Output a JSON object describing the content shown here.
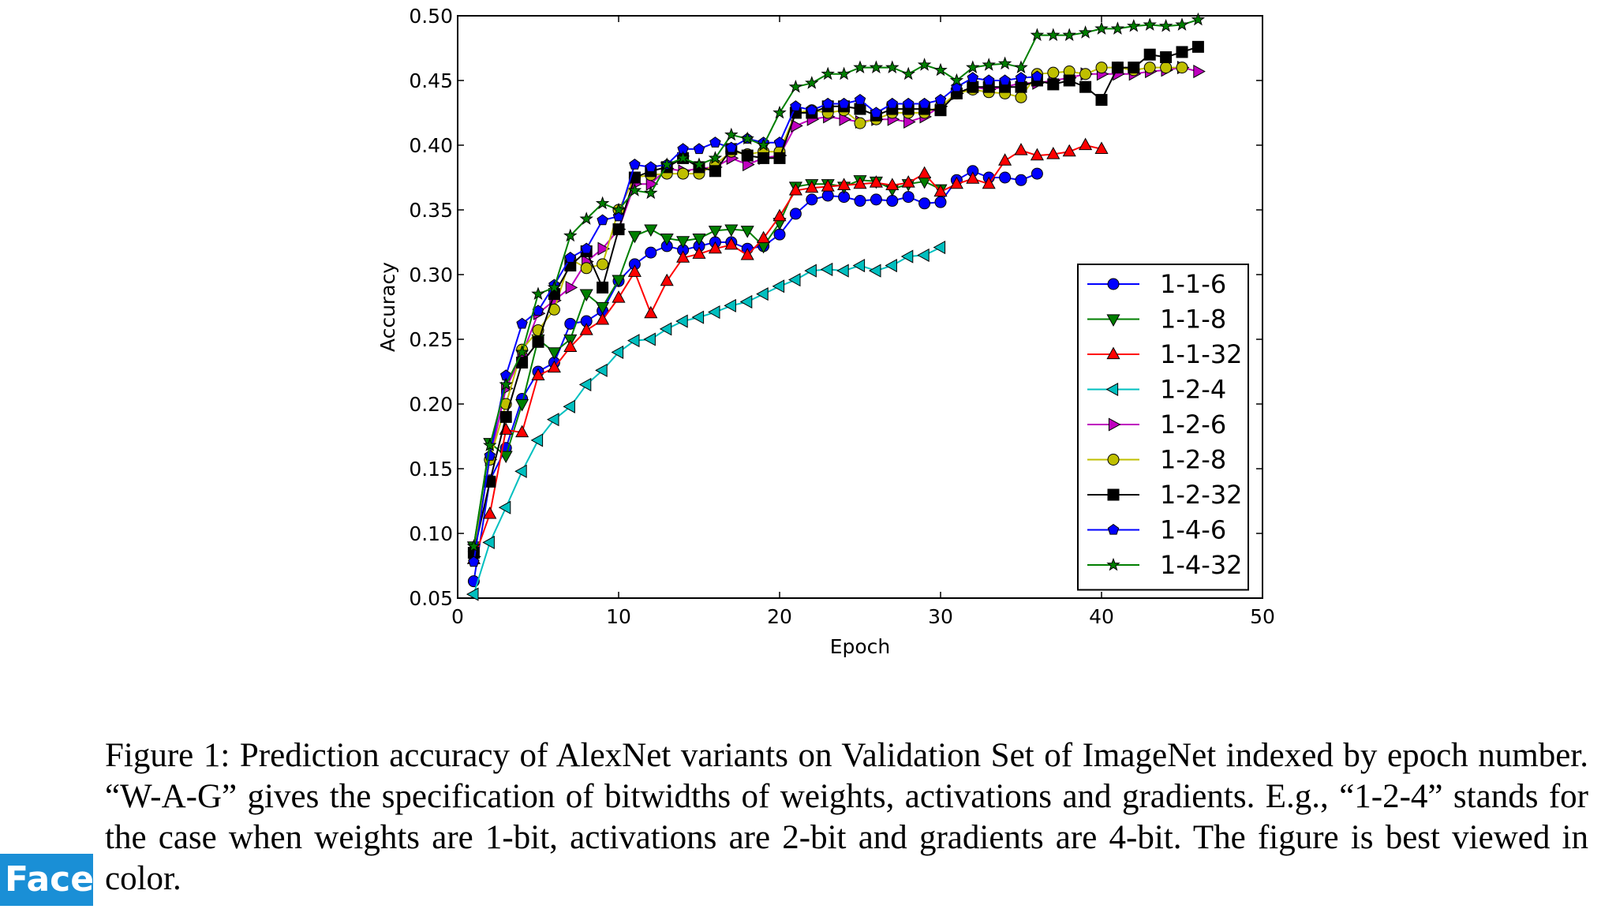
{
  "chart_data": {
    "type": "line",
    "title": "",
    "xlabel": "Epoch",
    "ylabel": "Accuracy",
    "xlim": [
      0,
      50
    ],
    "ylim": [
      0.05,
      0.5
    ],
    "xticks": [
      "0",
      "10",
      "20",
      "30",
      "40",
      "50"
    ],
    "yticks": [
      "0.05",
      "0.10",
      "0.15",
      "0.20",
      "0.25",
      "0.30",
      "0.35",
      "0.40",
      "0.45",
      "0.50"
    ],
    "grid": false,
    "legend_position": "lower-right",
    "series": [
      {
        "name": "1-1-6",
        "color": "#0000ff",
        "marker": "circle",
        "x": [
          1,
          2,
          3,
          4,
          5,
          6,
          7,
          8,
          9,
          10,
          11,
          12,
          13,
          14,
          15,
          16,
          17,
          18,
          19,
          20,
          21,
          22,
          23,
          24,
          25,
          26,
          27,
          28,
          29,
          30,
          31,
          32,
          33,
          34,
          35,
          36
        ],
        "y": [
          0.063,
          0.141,
          0.166,
          0.204,
          0.225,
          0.232,
          0.262,
          0.264,
          0.272,
          0.295,
          0.308,
          0.317,
          0.322,
          0.319,
          0.322,
          0.325,
          0.325,
          0.32,
          0.322,
          0.331,
          0.347,
          0.358,
          0.361,
          0.36,
          0.357,
          0.358,
          0.357,
          0.36,
          0.355,
          0.356,
          0.373,
          0.38,
          0.375,
          0.375,
          0.373,
          0.378
        ]
      },
      {
        "name": "1-1-8",
        "color": "#007f00",
        "marker": "triangle-down",
        "x": [
          1,
          2,
          3,
          4,
          5,
          6,
          7,
          8,
          9,
          10,
          11,
          12,
          13,
          14,
          15,
          16,
          17,
          18,
          19,
          20,
          21,
          22,
          23,
          24,
          25,
          26,
          27,
          28,
          29,
          30
        ],
        "y": [
          0.09,
          0.17,
          0.16,
          0.2,
          0.25,
          0.24,
          0.25,
          0.285,
          0.275,
          0.296,
          0.33,
          0.335,
          0.328,
          0.326,
          0.328,
          0.334,
          0.335,
          0.334,
          0.322,
          0.34,
          0.368,
          0.37,
          0.37,
          0.368,
          0.373,
          0.372,
          0.366,
          0.37,
          0.372,
          0.366
        ]
      },
      {
        "name": "1-1-32",
        "color": "#ff0000",
        "marker": "triangle-up",
        "x": [
          1,
          2,
          3,
          4,
          5,
          6,
          7,
          8,
          9,
          10,
          11,
          12,
          13,
          14,
          15,
          16,
          17,
          18,
          19,
          20,
          21,
          22,
          23,
          24,
          25,
          26,
          27,
          28,
          29,
          30,
          31,
          32,
          33,
          34,
          35,
          36,
          37,
          38,
          39,
          40
        ],
        "y": [
          0.08,
          0.115,
          0.18,
          0.178,
          0.222,
          0.228,
          0.244,
          0.257,
          0.265,
          0.282,
          0.302,
          0.27,
          0.295,
          0.313,
          0.316,
          0.32,
          0.323,
          0.315,
          0.328,
          0.345,
          0.365,
          0.367,
          0.368,
          0.369,
          0.37,
          0.371,
          0.369,
          0.371,
          0.378,
          0.364,
          0.37,
          0.374,
          0.37,
          0.388,
          0.396,
          0.392,
          0.393,
          0.395,
          0.4,
          0.397
        ]
      },
      {
        "name": "1-2-4",
        "color": "#00bfbf",
        "marker": "triangle-left",
        "x": [
          1,
          2,
          3,
          4,
          5,
          6,
          7,
          8,
          9,
          10,
          11,
          12,
          13,
          14,
          15,
          16,
          17,
          18,
          19,
          20,
          21,
          22,
          23,
          24,
          25,
          26,
          27,
          28,
          29,
          30
        ],
        "y": [
          0.053,
          0.093,
          0.12,
          0.148,
          0.172,
          0.188,
          0.198,
          0.215,
          0.226,
          0.24,
          0.249,
          0.25,
          0.258,
          0.264,
          0.267,
          0.271,
          0.276,
          0.279,
          0.285,
          0.291,
          0.296,
          0.303,
          0.304,
          0.303,
          0.307,
          0.303,
          0.307,
          0.314,
          0.315,
          0.321
        ]
      },
      {
        "name": "1-2-6",
        "color": "#bf00bf",
        "marker": "triangle-right",
        "x": [
          1,
          2,
          3,
          4,
          5,
          6,
          7,
          8,
          9,
          10,
          11,
          12,
          13,
          14,
          15,
          16,
          17,
          18,
          19,
          20,
          21,
          22,
          23,
          24,
          25,
          26,
          27,
          28,
          29,
          30,
          31,
          32,
          33,
          34,
          35,
          36,
          37,
          38,
          39,
          40,
          41,
          42,
          43,
          44,
          45,
          46
        ],
        "y": [
          0.082,
          0.157,
          0.212,
          0.238,
          0.27,
          0.28,
          0.29,
          0.31,
          0.32,
          0.335,
          0.37,
          0.37,
          0.382,
          0.38,
          0.382,
          0.383,
          0.39,
          0.385,
          0.39,
          0.392,
          0.415,
          0.42,
          0.422,
          0.42,
          0.418,
          0.42,
          0.42,
          0.418,
          0.422,
          0.43,
          0.44,
          0.445,
          0.443,
          0.445,
          0.448,
          0.448,
          0.45,
          0.452,
          0.455,
          0.455,
          0.455,
          0.455,
          0.457,
          0.458,
          0.46,
          0.457
        ]
      },
      {
        "name": "1-2-8",
        "color": "#bfbf00",
        "marker": "circle",
        "x": [
          1,
          2,
          3,
          4,
          5,
          6,
          7,
          8,
          9,
          10,
          11,
          12,
          13,
          14,
          15,
          16,
          17,
          18,
          19,
          20,
          21,
          22,
          23,
          24,
          25,
          26,
          27,
          28,
          29,
          30,
          31,
          32,
          33,
          34,
          35,
          36,
          37,
          38,
          39,
          40,
          41,
          42,
          43,
          44,
          45
        ],
        "y": [
          0.086,
          0.157,
          0.2,
          0.242,
          0.257,
          0.273,
          0.312,
          0.305,
          0.308,
          0.35,
          0.375,
          0.377,
          0.378,
          0.378,
          0.378,
          0.385,
          0.395,
          0.393,
          0.395,
          0.395,
          0.425,
          0.427,
          0.425,
          0.427,
          0.417,
          0.42,
          0.425,
          0.425,
          0.425,
          0.43,
          0.44,
          0.443,
          0.441,
          0.44,
          0.437,
          0.455,
          0.456,
          0.457,
          0.455,
          0.46,
          0.46,
          0.458,
          0.46,
          0.46,
          0.46
        ]
      },
      {
        "name": "1-2-32",
        "color": "#000000",
        "marker": "square",
        "x": [
          1,
          2,
          3,
          4,
          5,
          6,
          7,
          8,
          9,
          10,
          11,
          12,
          13,
          14,
          15,
          16,
          17,
          18,
          19,
          20,
          21,
          22,
          23,
          24,
          25,
          26,
          27,
          28,
          29,
          30,
          31,
          32,
          33,
          34,
          35,
          36,
          37,
          38,
          39,
          40,
          41,
          42,
          43,
          44,
          45,
          46
        ],
        "y": [
          0.085,
          0.14,
          0.19,
          0.232,
          0.248,
          0.285,
          0.307,
          0.318,
          0.29,
          0.335,
          0.375,
          0.38,
          0.383,
          0.39,
          0.383,
          0.38,
          0.397,
          0.392,
          0.39,
          0.39,
          0.425,
          0.425,
          0.43,
          0.43,
          0.428,
          0.423,
          0.428,
          0.428,
          0.428,
          0.427,
          0.44,
          0.445,
          0.445,
          0.445,
          0.445,
          0.45,
          0.447,
          0.45,
          0.445,
          0.435,
          0.46,
          0.46,
          0.47,
          0.468,
          0.472,
          0.476
        ]
      },
      {
        "name": "1-4-6",
        "color": "#0000ff",
        "marker": "pentagon",
        "x": [
          1,
          2,
          3,
          4,
          5,
          6,
          7,
          8,
          9,
          10,
          11,
          12,
          13,
          14,
          15,
          16,
          17,
          18,
          19,
          20,
          21,
          22,
          23,
          24,
          25,
          26,
          27,
          28,
          29,
          30,
          31,
          32,
          33,
          34,
          35,
          36
        ],
        "y": [
          0.078,
          0.16,
          0.222,
          0.262,
          0.272,
          0.292,
          0.313,
          0.32,
          0.342,
          0.345,
          0.385,
          0.383,
          0.385,
          0.397,
          0.397,
          0.402,
          0.398,
          0.405,
          0.402,
          0.402,
          0.43,
          0.427,
          0.432,
          0.432,
          0.435,
          0.425,
          0.432,
          0.432,
          0.432,
          0.435,
          0.445,
          0.452,
          0.45,
          0.45,
          0.452,
          0.453
        ]
      },
      {
        "name": "1-4-32",
        "color": "#007f00",
        "marker": "star",
        "x": [
          1,
          2,
          3,
          4,
          5,
          6,
          7,
          8,
          9,
          10,
          11,
          12,
          13,
          14,
          15,
          16,
          17,
          18,
          19,
          20,
          21,
          22,
          23,
          24,
          25,
          26,
          27,
          28,
          29,
          30,
          31,
          32,
          33,
          34,
          35,
          36,
          37,
          38,
          39,
          40,
          41,
          42,
          43,
          44,
          45,
          46
        ],
        "y": [
          0.09,
          0.168,
          0.215,
          0.24,
          0.285,
          0.29,
          0.33,
          0.343,
          0.355,
          0.35,
          0.365,
          0.363,
          0.385,
          0.39,
          0.385,
          0.39,
          0.408,
          0.405,
          0.4,
          0.425,
          0.445,
          0.448,
          0.455,
          0.455,
          0.46,
          0.46,
          0.46,
          0.455,
          0.462,
          0.458,
          0.45,
          0.46,
          0.462,
          0.463,
          0.46,
          0.485,
          0.485,
          0.485,
          0.487,
          0.49,
          0.49,
          0.492,
          0.493,
          0.492,
          0.493,
          0.497
        ]
      }
    ]
  },
  "caption": {
    "lines": [
      "Figure 1: Prediction accuracy of AlexNet variants on Validation Set of ImageNet indexed by epoch number. “W-A-G” gives the specification of bitwidths of weights, activations and gradients. E.g., “1-2-4” stands for the case when weights are 1-bit, activations are 2-bit and gradients are 4-bit. The figure is best viewed in color."
    ]
  },
  "logo": {
    "text": "Face",
    "sup": "+",
    "color": "#1a8fd6"
  }
}
